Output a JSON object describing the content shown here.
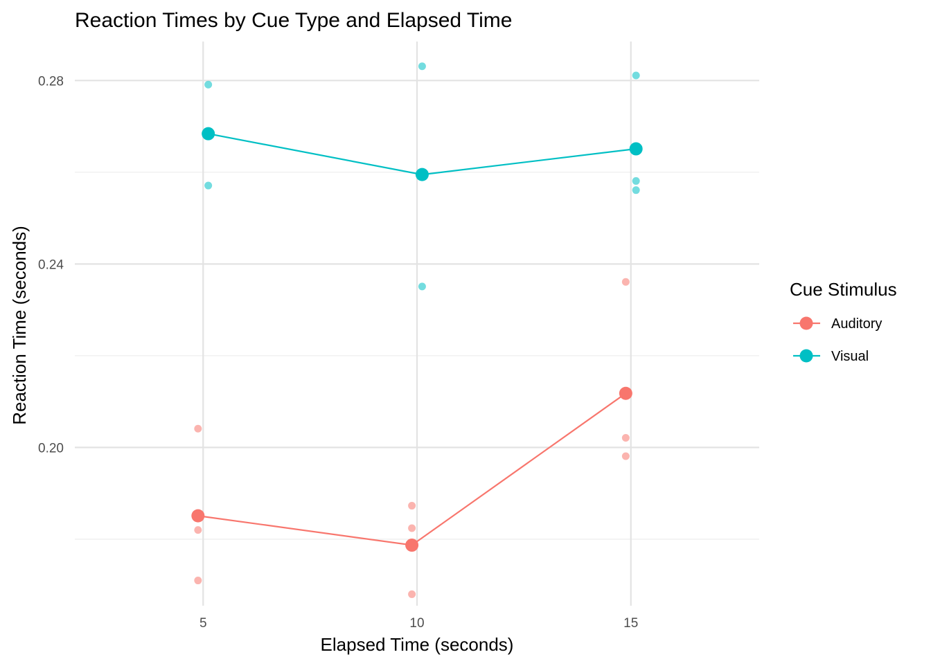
{
  "chart_data": {
    "type": "line",
    "title": "Reaction Times by Cue Type and Elapsed Time",
    "xlabel": "Elapsed Time (seconds)",
    "ylabel": "Reaction Time (seconds)",
    "xlim": [
      2.0,
      18.0
    ],
    "ylim": [
      0.1655,
      0.2885
    ],
    "x_ticks": [
      5,
      10,
      15
    ],
    "x_tick_labels": [
      "5",
      "10",
      "15"
    ],
    "y_ticks": [
      0.2,
      0.24,
      0.28
    ],
    "y_tick_labels": [
      "0.20",
      "0.24",
      "0.28"
    ],
    "y_minor_ticks": [
      0.18,
      0.22,
      0.26
    ],
    "grid": true,
    "legend": {
      "title": "Cue Stimulus",
      "position": "right"
    },
    "series": [
      {
        "name": "Auditory",
        "color": "#F8766D",
        "x_offset": -0.12,
        "means": [
          {
            "x": 5,
            "y": 0.1851
          },
          {
            "x": 10,
            "y": 0.1787
          },
          {
            "x": 15,
            "y": 0.2118
          }
        ],
        "observations": [
          {
            "x": 5,
            "y": 0.2041
          },
          {
            "x": 5,
            "y": 0.182
          },
          {
            "x": 5,
            "y": 0.171
          },
          {
            "x": 10,
            "y": 0.1873
          },
          {
            "x": 10,
            "y": 0.1824
          },
          {
            "x": 10,
            "y": 0.168
          },
          {
            "x": 15,
            "y": 0.2361
          },
          {
            "x": 15,
            "y": 0.2021
          },
          {
            "x": 15,
            "y": 0.1981
          }
        ]
      },
      {
        "name": "Visual",
        "color": "#00BFC4",
        "x_offset": 0.12,
        "means": [
          {
            "x": 5,
            "y": 0.2684
          },
          {
            "x": 10,
            "y": 0.2595
          },
          {
            "x": 15,
            "y": 0.2651
          }
        ],
        "observations": [
          {
            "x": 5,
            "y": 0.2791
          },
          {
            "x": 5,
            "y": 0.2571
          },
          {
            "x": 10,
            "y": 0.2831
          },
          {
            "x": 10,
            "y": 0.2351
          },
          {
            "x": 15,
            "y": 0.2811
          },
          {
            "x": 15,
            "y": 0.2581
          },
          {
            "x": 15,
            "y": 0.2561
          }
        ]
      }
    ]
  }
}
